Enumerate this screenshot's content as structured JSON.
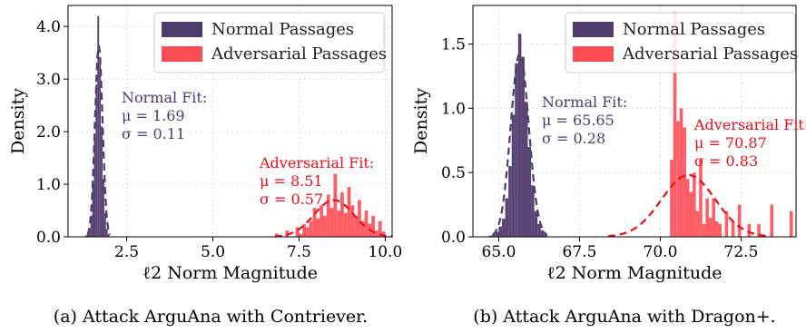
{
  "colors": {
    "normal": "#4f3a6e",
    "adversarial": "#ff4d55",
    "normal_fit": "#4f3a6e",
    "adversarial_fit": "#e8101a"
  },
  "chart_data": [
    {
      "type": "histogram",
      "xlabel": "ℓ2 Norm Magnitude",
      "ylabel": "Density",
      "xlim": [
        0.8,
        10.2
      ],
      "ylim": [
        0,
        4.4
      ],
      "xticks": [
        2.5,
        5.0,
        7.5,
        10.0
      ],
      "xtick_labels": [
        "2.5",
        "5.0",
        "7.5",
        "10.0"
      ],
      "yticks": [
        0.0,
        1.0,
        2.0,
        3.0,
        4.0
      ],
      "ytick_labels": [
        "0.0",
        "1.0",
        "2.0",
        "3.0",
        "4.0"
      ],
      "grid": true,
      "legend_position": "top-right",
      "series": [
        {
          "name": "Normal Passages",
          "bins": [
            [
              1.3,
              1.35,
              0.03
            ],
            [
              1.35,
              1.4,
              0.06
            ],
            [
              1.4,
              1.45,
              0.15
            ],
            [
              1.45,
              1.5,
              0.4
            ],
            [
              1.5,
              1.55,
              1.0
            ],
            [
              1.55,
              1.6,
              1.9
            ],
            [
              1.6,
              1.65,
              2.9
            ],
            [
              1.65,
              1.7,
              4.2
            ],
            [
              1.7,
              1.75,
              3.3
            ],
            [
              1.75,
              1.8,
              2.1
            ],
            [
              1.8,
              1.85,
              1.1
            ],
            [
              1.85,
              1.9,
              0.45
            ],
            [
              1.9,
              1.95,
              0.15
            ],
            [
              1.95,
              2.0,
              0.05
            ]
          ]
        },
        {
          "name": "Adversarial Passages",
          "bins": [
            [
              6.8,
              6.9,
              0.06
            ],
            [
              7.1,
              7.2,
              0.12
            ],
            [
              7.4,
              7.5,
              0.18
            ],
            [
              7.5,
              7.6,
              0.06
            ],
            [
              7.6,
              7.7,
              0.24
            ],
            [
              7.7,
              7.8,
              0.18
            ],
            [
              7.8,
              7.9,
              0.3
            ],
            [
              7.9,
              8.0,
              0.55
            ],
            [
              8.0,
              8.1,
              0.35
            ],
            [
              8.1,
              8.2,
              0.6
            ],
            [
              8.2,
              8.3,
              0.4
            ],
            [
              8.3,
              8.4,
              0.8
            ],
            [
              8.4,
              8.5,
              0.55
            ],
            [
              8.5,
              8.6,
              1.2
            ],
            [
              8.6,
              8.7,
              0.5
            ],
            [
              8.7,
              8.8,
              0.85
            ],
            [
              8.8,
              8.9,
              0.45
            ],
            [
              8.9,
              9.0,
              0.95
            ],
            [
              9.0,
              9.1,
              0.6
            ],
            [
              9.1,
              9.2,
              0.4
            ],
            [
              9.2,
              9.3,
              0.7
            ],
            [
              9.3,
              9.4,
              0.3
            ],
            [
              9.4,
              9.5,
              0.5
            ],
            [
              9.5,
              9.6,
              0.25
            ],
            [
              9.6,
              9.7,
              0.4
            ],
            [
              9.7,
              9.8,
              0.12
            ],
            [
              9.8,
              9.9,
              0.3
            ],
            [
              9.9,
              10.0,
              0.1
            ]
          ]
        }
      ],
      "fits": [
        {
          "series": "Normal Passages",
          "mu": 1.69,
          "sigma": 0.11,
          "label": "Normal Fit:",
          "mu_text": "μ = 1.69",
          "sigma_text": "σ = 0.11",
          "style": "dashed"
        },
        {
          "series": "Adversarial Passages",
          "mu": 8.51,
          "sigma": 0.57,
          "label": "Adversarial Fit:",
          "mu_text": "μ = 8.51",
          "sigma_text": "σ = 0.57",
          "style": "dashed"
        }
      ],
      "caption": "(a) Attack ArguAna with Contriever."
    },
    {
      "type": "histogram",
      "xlabel": "ℓ2 Norm Magnitude",
      "ylabel": "Density",
      "xlim": [
        64.2,
        74.2
      ],
      "ylim": [
        0,
        1.8
      ],
      "xticks": [
        65.0,
        67.5,
        70.0,
        72.5
      ],
      "xtick_labels": [
        "65.0",
        "67.5",
        "70.0",
        "72.5"
      ],
      "yticks": [
        0.0,
        0.5,
        1.0,
        1.5
      ],
      "ytick_labels": [
        "0.0",
        "0.5",
        "1.0",
        "1.5"
      ],
      "grid": true,
      "legend_position": "top-right",
      "series": [
        {
          "name": "Normal Passages",
          "bins": [
            [
              64.7,
              64.8,
              0.01
            ],
            [
              64.8,
              64.9,
              0.02
            ],
            [
              64.9,
              65.0,
              0.04
            ],
            [
              65.0,
              65.1,
              0.08
            ],
            [
              65.1,
              65.2,
              0.14
            ],
            [
              65.2,
              65.3,
              0.3
            ],
            [
              65.3,
              65.4,
              0.55
            ],
            [
              65.4,
              65.5,
              0.95
            ],
            [
              65.5,
              65.6,
              1.35
            ],
            [
              65.6,
              65.7,
              1.58
            ],
            [
              65.7,
              65.8,
              1.4
            ],
            [
              65.8,
              65.9,
              1.05
            ],
            [
              65.9,
              66.0,
              0.7
            ],
            [
              66.0,
              66.1,
              0.4
            ],
            [
              66.1,
              66.2,
              0.2
            ],
            [
              66.2,
              66.3,
              0.1
            ],
            [
              66.3,
              66.4,
              0.05
            ],
            [
              66.4,
              66.5,
              0.02
            ]
          ]
        },
        {
          "name": "Adversarial Passages",
          "bins": [
            [
              70.3,
              70.4,
              0.6
            ],
            [
              70.4,
              70.5,
              1.75
            ],
            [
              70.5,
              70.6,
              0.9
            ],
            [
              70.6,
              70.7,
              1.0
            ],
            [
              70.7,
              70.8,
              0.85
            ],
            [
              70.8,
              70.9,
              0.45
            ],
            [
              70.9,
              71.0,
              0.35
            ],
            [
              71.0,
              71.1,
              0.5
            ],
            [
              71.1,
              71.2,
              0.2
            ],
            [
              71.2,
              71.3,
              0.6
            ],
            [
              71.3,
              71.4,
              0.1
            ],
            [
              71.4,
              71.5,
              0.3
            ],
            [
              71.5,
              71.6,
              0.15
            ],
            [
              71.6,
              71.7,
              0.3
            ],
            [
              71.7,
              71.8,
              0.12
            ],
            [
              71.8,
              71.9,
              0.1
            ],
            [
              72.0,
              72.1,
              0.2
            ],
            [
              72.2,
              72.3,
              0.12
            ],
            [
              72.4,
              72.5,
              0.25
            ],
            [
              72.7,
              72.8,
              0.1
            ],
            [
              73.0,
              73.1,
              0.1
            ],
            [
              73.4,
              73.5,
              0.25
            ],
            [
              74.0,
              74.1,
              0.2
            ]
          ]
        }
      ],
      "fits": [
        {
          "series": "Normal Passages",
          "mu": 65.65,
          "sigma": 0.28,
          "label": "Normal Fit:",
          "mu_text": "μ = 65.65",
          "sigma_text": "σ = 0.28",
          "style": "dashed"
        },
        {
          "series": "Adversarial Passages",
          "mu": 70.87,
          "sigma": 0.83,
          "label": "Adversarial Fit:",
          "mu_text": "μ = 70.87",
          "sigma_text": "σ = 0.83",
          "style": "dashed"
        }
      ],
      "caption": "(b) Attack ArguAna with Dragon+."
    }
  ]
}
